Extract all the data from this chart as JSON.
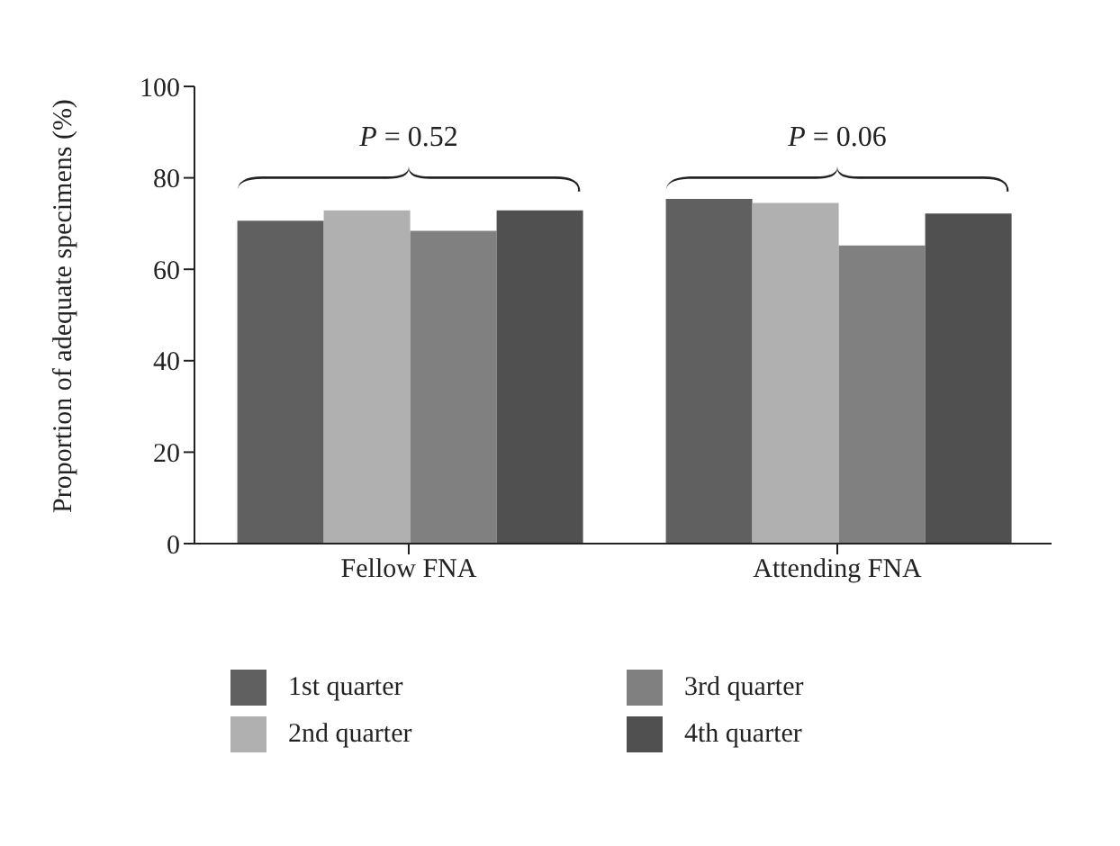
{
  "chart_data": {
    "type": "bar",
    "ylabel": "Proportion of adequate specimens (%)",
    "categories": [
      "Fellow FNA",
      "Attending FNA"
    ],
    "series": [
      {
        "name": "1st quarter",
        "color": "#606060",
        "values": [
          70.6,
          75.4
        ]
      },
      {
        "name": "2nd quarter",
        "color": "#b0b0b0",
        "values": [
          72.9,
          74.5
        ]
      },
      {
        "name": "3rd quarter",
        "color": "#808080",
        "values": [
          68.4,
          65.2
        ]
      },
      {
        "name": "4th quarter",
        "color": "#505050",
        "values": [
          72.9,
          72.2
        ]
      }
    ],
    "ylim": [
      0,
      100
    ],
    "yticks": [
      0,
      20,
      40,
      60,
      80,
      100
    ],
    "grid": false,
    "legend": "bottom",
    "annotations": [
      "P = 0.52",
      "P = 0.06"
    ]
  }
}
